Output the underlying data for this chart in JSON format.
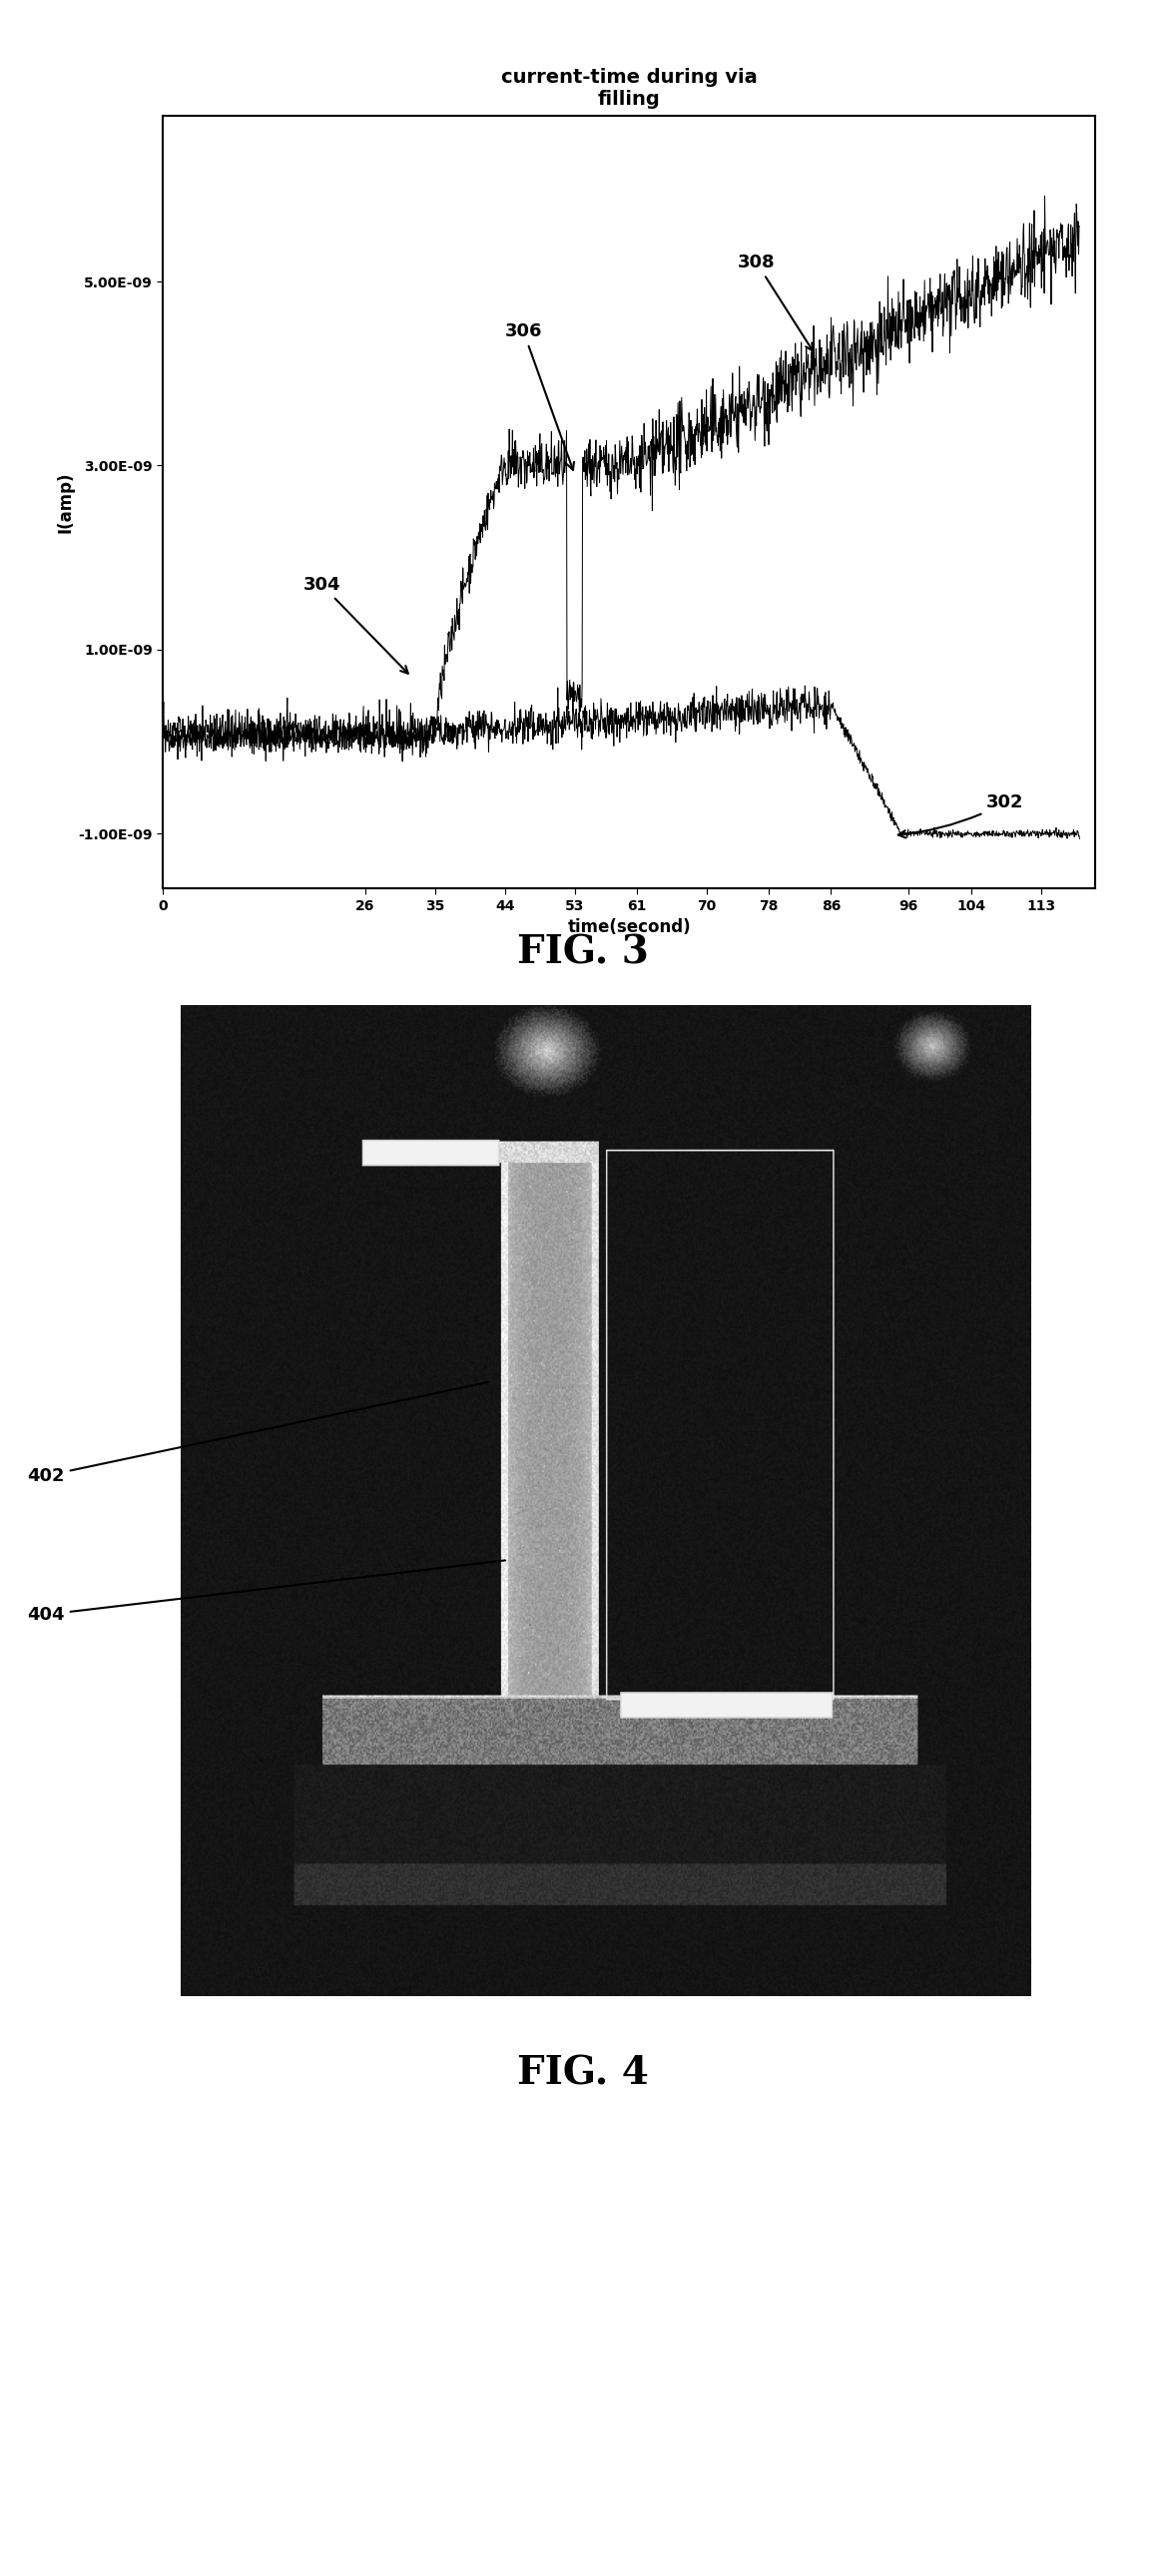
{
  "fig3": {
    "title": "current-time during via\nfilling",
    "xlabel": "time(second)",
    "ylabel": "I(amp)",
    "xticks": [
      0,
      26,
      35,
      44,
      53,
      61,
      70,
      78,
      86,
      96,
      104,
      113
    ],
    "ytick_labels": [
      "-1.00E-09",
      "1.00E-09",
      "3.00E-09",
      "5.00E-09"
    ],
    "ytick_vals": [
      -1e-09,
      1e-09,
      3e-09,
      5e-09
    ],
    "ylim": [
      -1.6e-09,
      6.8e-09
    ],
    "xlim": [
      0,
      120
    ]
  },
  "fig3_caption": "FIG. 3",
  "fig4_caption": "FIG. 4",
  "background_color": "#ffffff",
  "title_fontsize": 14,
  "label_fontsize": 12,
  "tick_fontsize": 10,
  "annotation_fontsize": 13,
  "caption_fontsize": 28
}
